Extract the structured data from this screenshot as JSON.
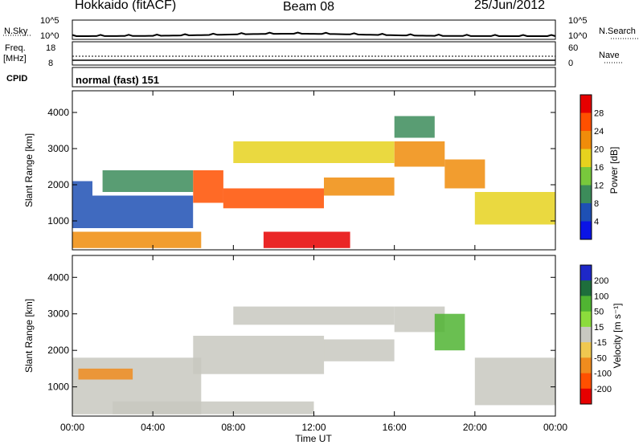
{
  "header": {
    "radar": "Hokkaido (fitACF)",
    "beam": "Beam 08",
    "date": "25/Jun/2012"
  },
  "noise_panel": {
    "left_label": "N.Sky",
    "left_ticks": [
      "10^5",
      "10^0"
    ],
    "right_label": "N.Search",
    "right_ticks": [
      "10^5",
      "10^0"
    ]
  },
  "freq_panel": {
    "left_label_1": "Freq.",
    "left_label_2": "[MHz]",
    "left_ticks": [
      "18",
      "8"
    ],
    "right_label": "Nave",
    "right_ticks": [
      "60",
      "0"
    ]
  },
  "cpid_panel": {
    "label": "CPID",
    "mode": "normal (fast) 151"
  },
  "x_axis": {
    "label": "Time UT",
    "ticks": [
      "00:00",
      "04:00",
      "08:00",
      "12:00",
      "16:00",
      "20:00",
      "00:00"
    ]
  },
  "chart_data": [
    {
      "type": "heatmap",
      "title": "",
      "xlabel": "Time UT",
      "ylabel": "Slant Range [km]",
      "xlim_hours": [
        0,
        24
      ],
      "ylim_km": [
        200,
        4600
      ],
      "y_ticks": [
        "1000",
        "2000",
        "3000",
        "4000"
      ],
      "colorbar": {
        "label": "Power [dB]",
        "ticks": [
          "4",
          "8",
          "12",
          "16",
          "20",
          "24",
          "28"
        ],
        "colors": [
          "#0a14e6",
          "#1e50b4",
          "#3c8c5a",
          "#78c83c",
          "#e6d21e",
          "#f08c0a",
          "#ff5000",
          "#e60000"
        ]
      },
      "echo_regions": [
        {
          "t_start": 0.0,
          "t_end": 6.4,
          "r_start": 250,
          "r_end": 700,
          "value": 22
        },
        {
          "t_start": 0.0,
          "t_end": 1.0,
          "r_start": 800,
          "r_end": 2100,
          "value": 6
        },
        {
          "t_start": 1.0,
          "t_end": 6.0,
          "r_start": 800,
          "r_end": 1700,
          "value": 6
        },
        {
          "t_start": 1.5,
          "t_end": 6.0,
          "r_start": 1800,
          "r_end": 2400,
          "value": 11
        },
        {
          "t_start": 6.0,
          "t_end": 7.5,
          "r_start": 1500,
          "r_end": 2400,
          "value": 24
        },
        {
          "t_start": 7.5,
          "t_end": 12.5,
          "r_start": 1350,
          "r_end": 1900,
          "value": 27
        },
        {
          "t_start": 12.5,
          "t_end": 16.0,
          "r_start": 1700,
          "r_end": 2200,
          "value": 23
        },
        {
          "t_start": 16.0,
          "t_end": 18.5,
          "r_start": 2500,
          "r_end": 3200,
          "value": 21
        },
        {
          "t_start": 18.5,
          "t_end": 20.5,
          "r_start": 1900,
          "r_end": 2700,
          "value": 22
        },
        {
          "t_start": 20.0,
          "t_end": 24.0,
          "r_start": 900,
          "r_end": 1800,
          "value": 17
        },
        {
          "t_start": 9.5,
          "t_end": 13.8,
          "r_start": 250,
          "r_end": 700,
          "value": 28
        },
        {
          "t_start": 8.0,
          "t_end": 16.0,
          "r_start": 2600,
          "r_end": 3200,
          "value": 18
        },
        {
          "t_start": 16.0,
          "t_end": 18.0,
          "r_start": 3300,
          "r_end": 3900,
          "value": 10
        }
      ]
    },
    {
      "type": "heatmap",
      "title": "",
      "xlabel": "Time UT",
      "ylabel": "Slant Range [km]",
      "xlim_hours": [
        0,
        24
      ],
      "ylim_km": [
        200,
        4600
      ],
      "y_ticks": [
        "1000",
        "2000",
        "3000",
        "4000"
      ],
      "colorbar": {
        "label": "Velocity [m s⁻¹]",
        "ticks": [
          "200",
          "100",
          "50",
          "15",
          "-15",
          "-50",
          "-100",
          "-200"
        ],
        "colors": [
          "#1e28c8",
          "#1e6e3c",
          "#50b432",
          "#8cdc3c",
          "#c8c8c0",
          "#f0c850",
          "#f08c1e",
          "#ff5000",
          "#e60000"
        ]
      },
      "echo_regions": [
        {
          "t_start": 0.0,
          "t_end": 6.4,
          "r_start": 250,
          "r_end": 1800,
          "value": 0
        },
        {
          "t_start": 6.0,
          "t_end": 12.5,
          "r_start": 1350,
          "r_end": 2400,
          "value": 0
        },
        {
          "t_start": 12.5,
          "t_end": 16.0,
          "r_start": 1700,
          "r_end": 2300,
          "value": 0
        },
        {
          "t_start": 16.0,
          "t_end": 18.5,
          "r_start": 2500,
          "r_end": 3200,
          "value": 0
        },
        {
          "t_start": 18.0,
          "t_end": 19.5,
          "r_start": 2000,
          "r_end": 3000,
          "value": 60
        },
        {
          "t_start": 20.0,
          "t_end": 24.0,
          "r_start": 500,
          "r_end": 1800,
          "value": 0
        },
        {
          "t_start": 8.0,
          "t_end": 16.0,
          "r_start": 2700,
          "r_end": 3200,
          "value": 0
        },
        {
          "t_start": 0.3,
          "t_end": 3.0,
          "r_start": 1200,
          "r_end": 1500,
          "value": -60
        },
        {
          "t_start": 2.0,
          "t_end": 12.0,
          "r_start": 250,
          "r_end": 600,
          "value": 0
        }
      ]
    }
  ]
}
